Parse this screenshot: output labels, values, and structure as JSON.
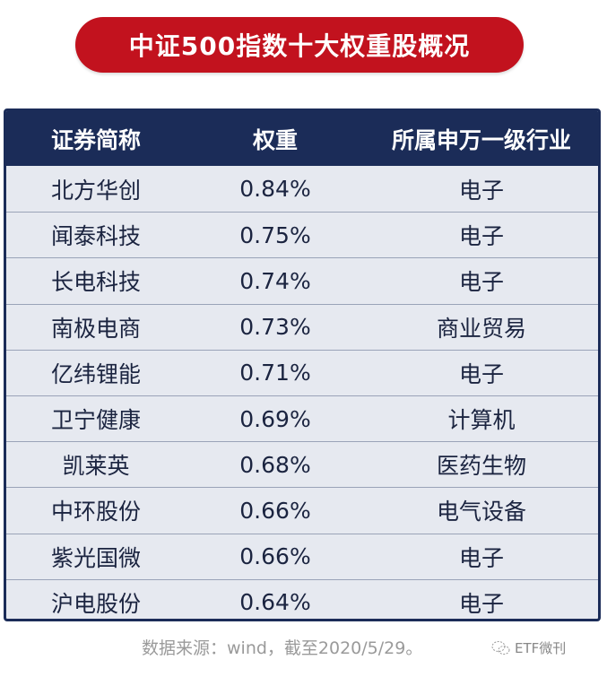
{
  "title": "中证500指数十大权重股概况",
  "table": {
    "headers": [
      "证券简称",
      "权重",
      "所属申万一级行业"
    ],
    "rows": [
      [
        "北方华创",
        "0.84%",
        "电子"
      ],
      [
        "闻泰科技",
        "0.75%",
        "电子"
      ],
      [
        "长电科技",
        "0.74%",
        "电子"
      ],
      [
        "南极电商",
        "0.73%",
        "商业贸易"
      ],
      [
        "亿纬锂能",
        "0.71%",
        "电子"
      ],
      [
        "卫宁健康",
        "0.69%",
        "计算机"
      ],
      [
        "凯莱英",
        "0.68%",
        "医药生物"
      ],
      [
        "中环股份",
        "0.66%",
        "电气设备"
      ],
      [
        "紫光国微",
        "0.66%",
        "电子"
      ],
      [
        "沪电股份",
        "0.64%",
        "电子"
      ]
    ]
  },
  "footer": {
    "source": "数据来源：wind，截至2020/5/29。"
  },
  "watermark": {
    "icon": "wechat-icon",
    "label": "ETF微刊"
  },
  "colors": {
    "title_bg": "#c2121e",
    "header_bg": "#1b2c58",
    "row_bg": "#e6e9f0"
  }
}
